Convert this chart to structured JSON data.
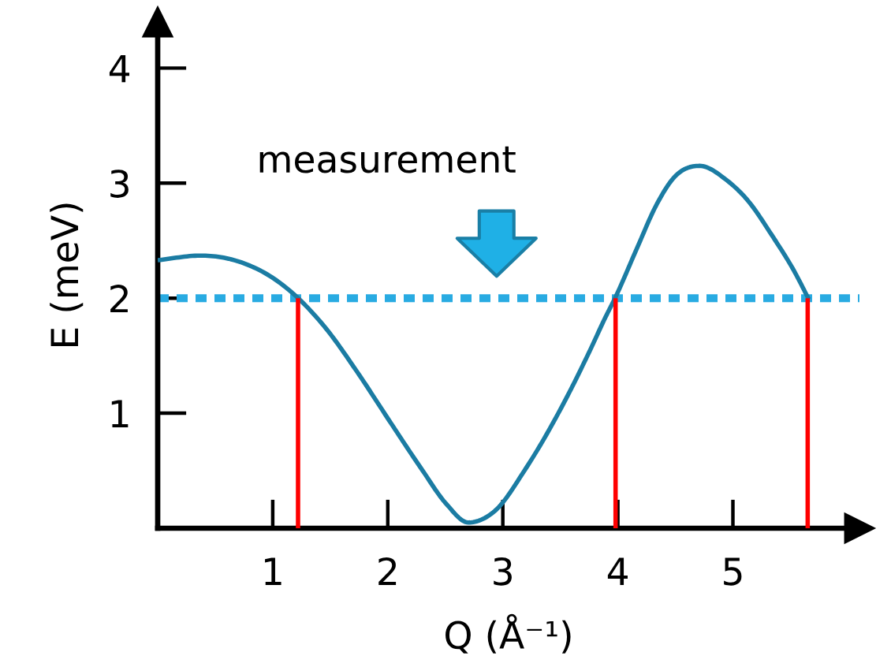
{
  "chart_data": {
    "type": "line",
    "xlabel": "Q (Å⁻¹)",
    "ylabel": "E (meV)",
    "xlim": [
      0,
      6.1
    ],
    "ylim": [
      0,
      4.4
    ],
    "xticks": [
      1,
      2,
      3,
      4,
      5
    ],
    "yticks": [
      1,
      2,
      3,
      4
    ],
    "grid": false,
    "marker": "none",
    "line_style": "solid",
    "series": [
      {
        "color": "#1b7ca3",
        "x": [
          0.0,
          0.37,
          0.73,
          1.01,
          1.21,
          1.46,
          1.74,
          2.01,
          2.29,
          2.51,
          2.7,
          2.93,
          3.2,
          3.52,
          3.75,
          3.89,
          3.98,
          4.16,
          4.34,
          4.48,
          4.71,
          4.94,
          5.12,
          5.35,
          5.53,
          5.66
        ],
        "values": [
          2.33,
          2.37,
          2.31,
          2.17,
          2.01,
          1.74,
          1.35,
          0.94,
          0.52,
          0.21,
          0.05,
          0.15,
          0.52,
          1.07,
          1.53,
          1.83,
          2.01,
          2.42,
          2.82,
          3.04,
          3.15,
          3.03,
          2.86,
          2.53,
          2.24,
          1.99
        ]
      },
      {
        "color": "#ff0000",
        "x": [
          1.22,
          1.22
        ],
        "values": [
          0,
          2
        ]
      },
      {
        "color": "#ff0000",
        "x": [
          3.98,
          3.98
        ],
        "values": [
          0,
          2
        ]
      },
      {
        "color": "#ff0000",
        "x": [
          5.65,
          5.65
        ],
        "values": [
          0,
          2
        ]
      }
    ],
    "ref_lines": [
      {
        "axis": "y",
        "value": 2,
        "color": "#29abe2",
        "line_style": "dotted"
      }
    ],
    "annotations": [
      "measurement"
    ]
  }
}
